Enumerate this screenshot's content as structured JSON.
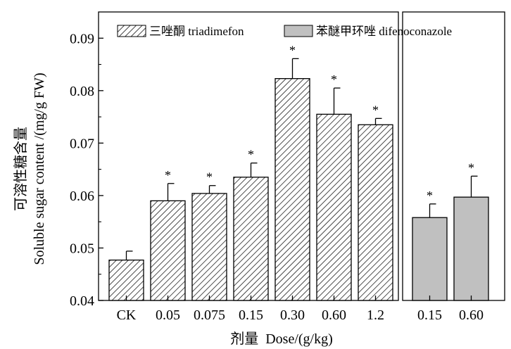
{
  "chart_data": {
    "type": "bar",
    "xlabel": "剂量  Dose/(g/kg)",
    "ylabel_cn": "可溶性糖含量",
    "ylabel_en": "Soluble sugar content /(mg/g FW)",
    "ylim": [
      0.04,
      0.095
    ],
    "yticks": [
      "0.04",
      "0.05",
      "0.06",
      "0.07",
      "0.08",
      "0.09"
    ],
    "legend_position": "top",
    "series": [
      {
        "name": "三唑酮 triadimefon",
        "fill": "hatched",
        "categories": [
          "CK",
          "0.05",
          "0.075",
          "0.15",
          "0.30",
          "0.60",
          "1.2"
        ],
        "values": [
          0.0477,
          0.059,
          0.0604,
          0.0635,
          0.0823,
          0.0755,
          0.0735
        ],
        "errors": [
          0.0017,
          0.0033,
          0.0015,
          0.0027,
          0.0038,
          0.005,
          0.0012
        ],
        "marks": [
          "",
          "*",
          "*",
          "*",
          "*",
          "*",
          "*"
        ]
      },
      {
        "name": "苯醚甲环唑 difenoconazole",
        "fill": "#c0c0c0",
        "categories": [
          "0.15",
          "0.60"
        ],
        "values": [
          0.0558,
          0.0597
        ],
        "errors": [
          0.0026,
          0.004
        ],
        "marks": [
          "*",
          "*"
        ]
      }
    ]
  }
}
